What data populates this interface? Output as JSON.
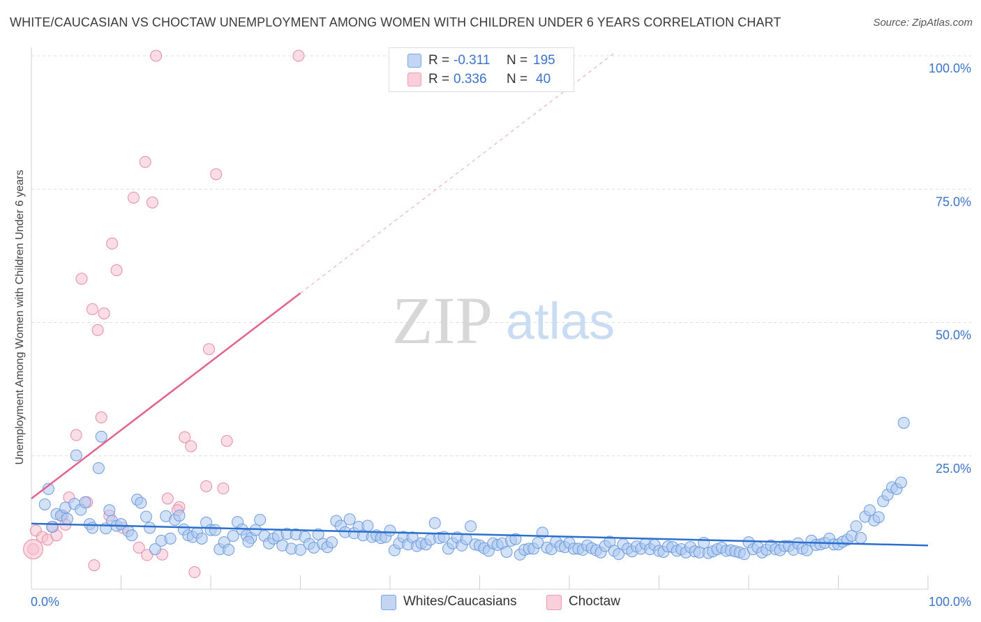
{
  "header": {
    "title": "WHITE/CAUCASIAN VS CHOCTAW UNEMPLOYMENT AMONG WOMEN WITH CHILDREN UNDER 6 YEARS CORRELATION CHART",
    "source": "Source: ZipAtlas.com"
  },
  "watermark": {
    "zip": "ZIP",
    "atlas": "atlas"
  },
  "legend": {
    "rows": [
      {
        "r_label": "R =",
        "r_value": "-0.311",
        "n_label": "N =",
        "n_value": "195"
      },
      {
        "r_label": "R =",
        "r_value": "0.336",
        "n_label": "N =",
        "n_value": "40"
      }
    ]
  },
  "bottom_legend": {
    "series_a": "Whites/Caucasians",
    "series_b": "Choctaw"
  },
  "colors": {
    "blue_fill": "#adc8ee",
    "blue_stroke": "#6b9be0",
    "blue_line": "#2b6fce",
    "pink_fill": "#f8c1d1",
    "pink_stroke": "#e88aa8",
    "pink_line": "#e2628c",
    "grid": "#dcdcdc",
    "tick_text": "#3a73c9"
  },
  "chart_data": {
    "type": "scatter",
    "title": "WHITE/CAUCASIAN VS CHOCTAW UNEMPLOYMENT AMONG WOMEN WITH CHILDREN UNDER 6 YEARS CORRELATION CHART",
    "xlabel": "",
    "ylabel": "Unemployment Among Women with Children Under 6 years",
    "xlim": [
      0,
      100
    ],
    "ylim": [
      0,
      100
    ],
    "x_tick_labels": [
      "0.0%",
      "100.0%"
    ],
    "y_tick_labels": [
      "25.0%",
      "50.0%",
      "75.0%",
      "100.0%"
    ],
    "y_ticks": [
      25,
      50,
      75,
      100
    ],
    "series": [
      {
        "name": "Whites/Caucasians",
        "r": -0.311,
        "n": 195,
        "trend": {
          "x": [
            0,
            100
          ],
          "y": [
            12.3,
            8.2
          ]
        },
        "points": [
          [
            1.5,
            15.9
          ],
          [
            1.9,
            18.8
          ],
          [
            2.3,
            11.7
          ],
          [
            2.8,
            14.1
          ],
          [
            3.3,
            13.8
          ],
          [
            3.8,
            15.3
          ],
          [
            4,
            13.2
          ],
          [
            4.8,
            16
          ],
          [
            5,
            25.1
          ],
          [
            5.5,
            14.9
          ],
          [
            6,
            16.3
          ],
          [
            6.5,
            12.2
          ],
          [
            6.8,
            11.5
          ],
          [
            7.5,
            22.7
          ],
          [
            7.8,
            28.6
          ],
          [
            8.3,
            11.4
          ],
          [
            8.7,
            14.8
          ],
          [
            9,
            12.8
          ],
          [
            9.5,
            11.9
          ],
          [
            10,
            12.2
          ],
          [
            10.8,
            10.9
          ],
          [
            11.2,
            10.1
          ],
          [
            11.8,
            16.8
          ],
          [
            12.2,
            16.2
          ],
          [
            12.8,
            13.6
          ],
          [
            13.2,
            11.5
          ],
          [
            13.8,
            7.5
          ],
          [
            14.5,
            9.1
          ],
          [
            15,
            13.7
          ],
          [
            15.5,
            9.5
          ],
          [
            16,
            13
          ],
          [
            16.5,
            13.8
          ],
          [
            17,
            11.2
          ],
          [
            17.5,
            10.1
          ],
          [
            18,
            9.8
          ],
          [
            18.5,
            10.6
          ],
          [
            19,
            9.5
          ],
          [
            19.5,
            12.5
          ],
          [
            20,
            11.1
          ],
          [
            20.5,
            11.1
          ],
          [
            21,
            7.5
          ],
          [
            21.5,
            8.8
          ],
          [
            22,
            7.4
          ],
          [
            22.5,
            10
          ],
          [
            23,
            12.6
          ],
          [
            23.5,
            11.2
          ],
          [
            24,
            10.1
          ],
          [
            24.5,
            9.6
          ],
          [
            25,
            11.1
          ],
          [
            25.5,
            13
          ],
          [
            26,
            10
          ],
          [
            26.5,
            8.6
          ],
          [
            27,
            9.5
          ],
          [
            27.5,
            10
          ],
          [
            28,
            8.2
          ],
          [
            28.5,
            10.4
          ],
          [
            29,
            7.6
          ],
          [
            29.5,
            10.3
          ],
          [
            30,
            7.4
          ],
          [
            30.5,
            9.8
          ],
          [
            31,
            8.5
          ],
          [
            31.5,
            7.8
          ],
          [
            32,
            10.3
          ],
          [
            32.5,
            8.5
          ],
          [
            33,
            7.9
          ],
          [
            33.5,
            8.8
          ],
          [
            34,
            12.8
          ],
          [
            34.5,
            11.9
          ],
          [
            35,
            10.7
          ],
          [
            35.5,
            13.1
          ],
          [
            36,
            10.5
          ],
          [
            36.5,
            11.7
          ],
          [
            37,
            10.1
          ],
          [
            37.5,
            11.9
          ],
          [
            38,
            9.8
          ],
          [
            38.5,
            10.1
          ],
          [
            39,
            9.6
          ],
          [
            39.5,
            9.8
          ],
          [
            40,
            11
          ],
          [
            40.5,
            7.3
          ],
          [
            41,
            8.6
          ],
          [
            41.5,
            9.8
          ],
          [
            42,
            8.4
          ],
          [
            42.5,
            9.7
          ],
          [
            43,
            8.1
          ],
          [
            43.5,
            8.6
          ],
          [
            44,
            8.4
          ],
          [
            44.5,
            9.3
          ],
          [
            45,
            12.4
          ],
          [
            45.5,
            9.6
          ],
          [
            46,
            9.8
          ],
          [
            46.5,
            7.6
          ],
          [
            47,
            8.6
          ],
          [
            47.5,
            9.7
          ],
          [
            48,
            8.2
          ],
          [
            48.5,
            9.4
          ],
          [
            49,
            11.8
          ],
          [
            49.5,
            8.4
          ],
          [
            50,
            8.2
          ],
          [
            50.5,
            7.7
          ],
          [
            51,
            7.2
          ],
          [
            51.5,
            8.6
          ],
          [
            52,
            8.3
          ],
          [
            52.5,
            8.6
          ],
          [
            53,
            7
          ],
          [
            53.5,
            9.1
          ],
          [
            54,
            9.4
          ],
          [
            54.5,
            6.5
          ],
          [
            55,
            7.4
          ],
          [
            55.5,
            7.6
          ],
          [
            56,
            7.6
          ],
          [
            56.5,
            8.7
          ],
          [
            57,
            10.6
          ],
          [
            57.5,
            7.8
          ],
          [
            58,
            7.5
          ],
          [
            58.5,
            8.9
          ],
          [
            59,
            8.1
          ],
          [
            59.5,
            7.9
          ],
          [
            60,
            8.7
          ],
          [
            60.5,
            7.6
          ],
          [
            61,
            7.6
          ],
          [
            61.5,
            7.4
          ],
          [
            62,
            8.2
          ],
          [
            62.5,
            7.7
          ],
          [
            63,
            7.3
          ],
          [
            63.5,
            6.9
          ],
          [
            64,
            8.1
          ],
          [
            64.5,
            8.9
          ],
          [
            65,
            7.2
          ],
          [
            65.5,
            6.6
          ],
          [
            66,
            8.4
          ],
          [
            66.5,
            7.6
          ],
          [
            67,
            7.1
          ],
          [
            67.5,
            8
          ],
          [
            68,
            7.6
          ],
          [
            68.5,
            8.5
          ],
          [
            69,
            7.5
          ],
          [
            69.5,
            8.3
          ],
          [
            70,
            7.2
          ],
          [
            70.5,
            7
          ],
          [
            71,
            8
          ],
          [
            71.5,
            7.9
          ],
          [
            72,
            7.2
          ],
          [
            72.5,
            7.5
          ],
          [
            73,
            6.9
          ],
          [
            73.5,
            7.9
          ],
          [
            74,
            7.1
          ],
          [
            74.5,
            6.9
          ],
          [
            75,
            8.7
          ],
          [
            75.5,
            6.8
          ],
          [
            76,
            7.1
          ],
          [
            76.5,
            7.5
          ],
          [
            77,
            7.8
          ],
          [
            77.5,
            7.2
          ],
          [
            78,
            7.3
          ],
          [
            78.5,
            7.1
          ],
          [
            79,
            6.9
          ],
          [
            79.5,
            6.6
          ],
          [
            80,
            8.8
          ],
          [
            80.5,
            7.5
          ],
          [
            81,
            7.9
          ],
          [
            81.5,
            6.9
          ],
          [
            82,
            7.4
          ],
          [
            82.5,
            8.2
          ],
          [
            83,
            7.5
          ],
          [
            83.5,
            7.3
          ],
          [
            84,
            8.1
          ],
          [
            84.5,
            8.1
          ],
          [
            85,
            7.4
          ],
          [
            85.5,
            8.6
          ],
          [
            86,
            7.6
          ],
          [
            86.5,
            7.3
          ],
          [
            87,
            9.1
          ],
          [
            87.5,
            8.3
          ],
          [
            88,
            8.4
          ],
          [
            88.5,
            8.7
          ],
          [
            89,
            9.5
          ],
          [
            89.5,
            8.4
          ],
          [
            90,
            8.4
          ],
          [
            90.5,
            8.9
          ],
          [
            91,
            9.3
          ],
          [
            91.5,
            10
          ],
          [
            92,
            11.8
          ],
          [
            92.5,
            9.6
          ],
          [
            93,
            13.6
          ],
          [
            93.5,
            14.8
          ],
          [
            94,
            12.9
          ],
          [
            94.5,
            13.5
          ],
          [
            95,
            16.5
          ],
          [
            95.5,
            17.7
          ],
          [
            96,
            19.1
          ],
          [
            96.5,
            18.8
          ],
          [
            97,
            20
          ],
          [
            97.3,
            31.2
          ],
          [
            24.2,
            8.9
          ]
        ]
      },
      {
        "name": "Choctaw",
        "r": 0.336,
        "n": 40,
        "trend": {
          "x": [
            0,
            30
          ],
          "y": [
            17,
            55.5
          ]
        },
        "trend_extension": {
          "x": [
            30,
            65
          ],
          "y": [
            55.5,
            100.5
          ]
        },
        "points": [
          [
            0.2,
            7.5
          ],
          [
            0.5,
            11
          ],
          [
            1.2,
            9.8
          ],
          [
            1.8,
            9.3
          ],
          [
            2.4,
            11.7
          ],
          [
            2.8,
            10.1
          ],
          [
            3.5,
            13.8
          ],
          [
            3.8,
            12.1
          ],
          [
            4.2,
            17.2
          ],
          [
            5,
            28.9
          ],
          [
            5.6,
            58.2
          ],
          [
            6.2,
            16.3
          ],
          [
            6.8,
            52.5
          ],
          [
            7,
            4.5
          ],
          [
            7.4,
            48.6
          ],
          [
            7.8,
            32.2
          ],
          [
            8.1,
            51.7
          ],
          [
            8.7,
            13.8
          ],
          [
            9,
            64.8
          ],
          [
            9.5,
            59.8
          ],
          [
            10.2,
            11.5
          ],
          [
            11.4,
            73.4
          ],
          [
            12,
            7.8
          ],
          [
            12.7,
            80.1
          ],
          [
            12.9,
            6.4
          ],
          [
            13.5,
            72.5
          ],
          [
            13.9,
            100
          ],
          [
            14.6,
            6.5
          ],
          [
            15.2,
            17
          ],
          [
            16.5,
            15.4
          ],
          [
            17.1,
            28.5
          ],
          [
            17.8,
            26.8
          ],
          [
            18.2,
            3.2
          ],
          [
            19.5,
            19.3
          ],
          [
            19.8,
            45
          ],
          [
            20.6,
            77.8
          ],
          [
            21.4,
            18.9
          ],
          [
            21.8,
            27.8
          ],
          [
            29.8,
            100
          ],
          [
            16.3,
            14.8
          ]
        ]
      }
    ]
  }
}
